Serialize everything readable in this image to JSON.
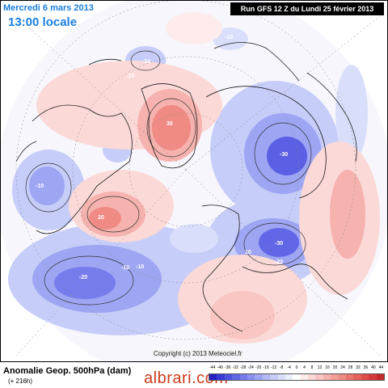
{
  "header": {
    "date_line": "Mercredi 6 mars 2013",
    "local_time": "13:00 locale",
    "run_info": "Run GFS 12 Z du Lundi 25 février 2013"
  },
  "footer": {
    "parameter": "Anomalie Geop. 500hPa (dam)",
    "lead_time": "(+ 216h)",
    "copyright": "Copyright (c) 2013 Meteociel.fr",
    "brand": "albrari.com"
  },
  "contour_labels": {
    "greenland_high": "30",
    "canada_high": "20",
    "siberia_low": "-30",
    "europe_low": "-30",
    "europe_low_2": "-20",
    "atlantic_low": "-20",
    "atlantic_low_2": "-10",
    "atlantic_low_3": "-10",
    "pacific_low": "-10",
    "pacific_low_2": "-10",
    "arctic_low": "-10",
    "north_low": "10",
    "west_low": "-10"
  },
  "scale": {
    "ticks": [
      "-44",
      "-40",
      "-36",
      "-32",
      "-28",
      "-24",
      "-20",
      "-16",
      "-12",
      "-8",
      "-4",
      "0",
      "4",
      "8",
      "12",
      "16",
      "20",
      "24",
      "28",
      "32",
      "36",
      "40",
      "44"
    ],
    "colors": [
      "#2a1fc4",
      "#3a3ad6",
      "#4d52e0",
      "#6166e6",
      "#767ceb",
      "#8a91ef",
      "#9ea5f3",
      "#b2baf6",
      "#c6cdf9",
      "#d9dffb",
      "#eceffd",
      "#ffffff",
      "#fdeceb",
      "#fbd9d7",
      "#f9c6c3",
      "#f6b2ae",
      "#f39e99",
      "#ef8a84",
      "#eb766f",
      "#e6615a",
      "#e04d45",
      "#d6393a",
      "#c42a2a"
    ]
  }
}
